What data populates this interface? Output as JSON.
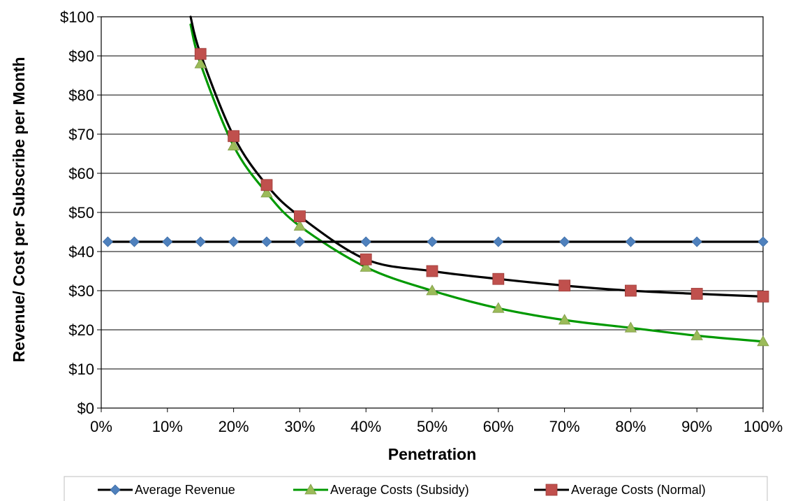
{
  "chart_data": {
    "type": "line",
    "title": "",
    "xlabel": "Penetration",
    "ylabel": "Revenue/ Cost per Subscribe per Month",
    "xlim": [
      0,
      100
    ],
    "ylim": [
      0,
      100
    ],
    "x_tick_labels": [
      "0%",
      "10%",
      "20%",
      "30%",
      "40%",
      "50%",
      "60%",
      "70%",
      "80%",
      "90%",
      "100%"
    ],
    "y_tick_labels": [
      "$0",
      "$10",
      "$20",
      "$30",
      "$40",
      "$50",
      "$60",
      "$70",
      "$80",
      "$90",
      "$100"
    ],
    "grid": "horizontal",
    "legend_position": "bottom",
    "series": [
      {
        "name": "Average Revenue",
        "color": "#4f81bd",
        "line_color": "#000000",
        "marker": "diamond",
        "x": [
          1,
          5,
          10,
          15,
          20,
          25,
          30,
          40,
          50,
          60,
          70,
          80,
          90,
          100
        ],
        "y": [
          42.5,
          42.5,
          42.5,
          42.5,
          42.5,
          42.5,
          42.5,
          42.5,
          42.5,
          42.5,
          42.5,
          42.5,
          42.5,
          42.5
        ]
      },
      {
        "name": "Average Costs (Subsidy)",
        "color": "#9bbb59",
        "line_color": "#009900",
        "marker": "triangle",
        "x": [
          13.5,
          15,
          20,
          25,
          30,
          40,
          50,
          60,
          70,
          80,
          90,
          100
        ],
        "y": [
          98,
          88,
          67,
          55,
          46.5,
          36,
          30,
          25.5,
          22.5,
          20.5,
          18.5,
          17
        ]
      },
      {
        "name": "Average Costs (Normal)",
        "color": "#c0504d",
        "line_color": "#000000",
        "marker": "square",
        "x": [
          13.5,
          15,
          20,
          25,
          30,
          40,
          50,
          60,
          70,
          80,
          90,
          100
        ],
        "y": [
          100,
          90.5,
          69.5,
          57,
          49,
          38,
          35,
          33,
          31.3,
          30,
          29.2,
          28.5
        ]
      }
    ]
  }
}
